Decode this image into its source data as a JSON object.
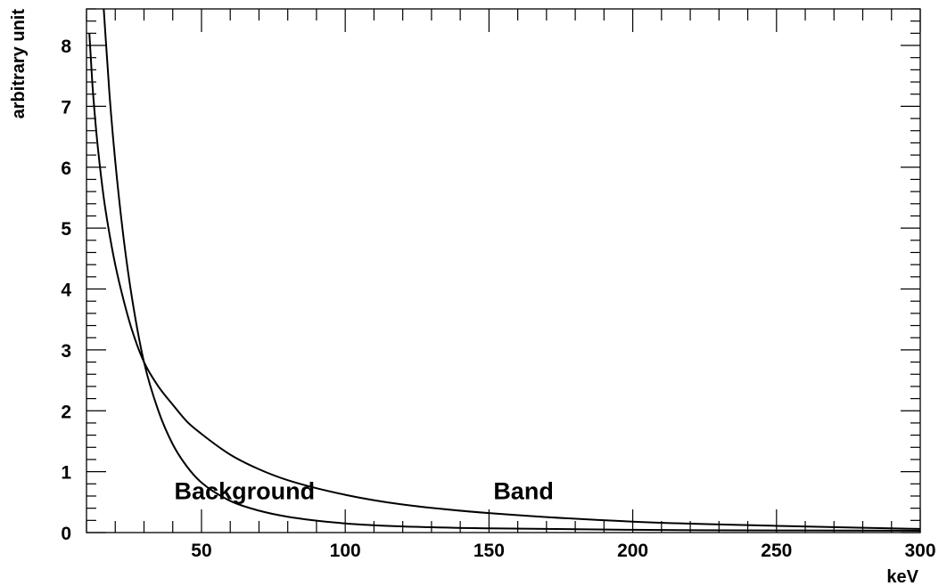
{
  "chart_data": {
    "type": "line",
    "title": "",
    "xlabel": "keV",
    "ylabel": "arbitrary unit",
    "xlim": [
      10,
      300
    ],
    "ylim": [
      0,
      8.6
    ],
    "x_ticks": [
      50,
      100,
      150,
      200,
      250,
      300
    ],
    "y_ticks": [
      0,
      1,
      2,
      3,
      4,
      5,
      6,
      7,
      8
    ],
    "grid": false,
    "annotations": [
      {
        "text": "Background",
        "x": 65,
        "y": 0.55
      },
      {
        "text": "Band",
        "x": 162,
        "y": 0.55
      }
    ],
    "series": [
      {
        "x": [
          16,
          18,
          20,
          23,
          26,
          30,
          35,
          40,
          45,
          50,
          60,
          70,
          80,
          100,
          120,
          150,
          200,
          250,
          300
        ],
        "y": [
          8.6,
          7.2,
          6.1,
          4.8,
          3.8,
          2.8,
          2.0,
          1.45,
          1.08,
          0.82,
          0.52,
          0.36,
          0.26,
          0.15,
          0.1,
          0.07,
          0.045,
          0.035,
          0.03
        ]
      },
      {
        "x": [
          11,
          12,
          13,
          14,
          16,
          18,
          20,
          23,
          26,
          30,
          35,
          40,
          45,
          50,
          60,
          70,
          80,
          100,
          120,
          150,
          200,
          250,
          300
        ],
        "y": [
          8.2,
          7.4,
          6.8,
          6.3,
          5.5,
          4.9,
          4.4,
          3.8,
          3.3,
          2.8,
          2.4,
          2.1,
          1.82,
          1.62,
          1.28,
          1.04,
          0.86,
          0.62,
          0.46,
          0.32,
          0.18,
          0.11,
          0.06
        ]
      }
    ]
  }
}
